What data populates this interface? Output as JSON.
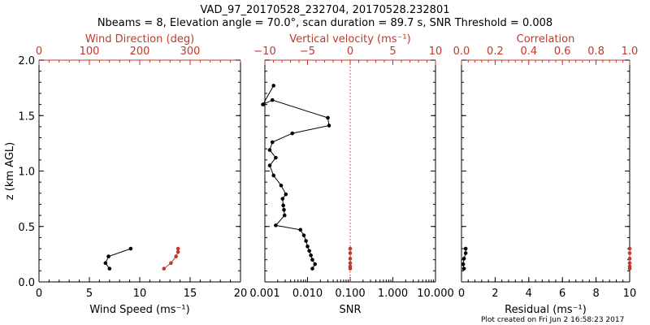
{
  "figure": {
    "title_line1": "VAD_97_20170528_232704, 20170528.232801",
    "title_line2": "Nbeams = 8, Elevation angle = 70.0°, scan duration = 89.7 s, SNR Threshold = 0.008",
    "footer": "Plot created on Fri Jun  2 16:58:23 2017"
  },
  "colors": {
    "primary": "#000000",
    "secondary": "#c0392b"
  },
  "chart_data": [
    {
      "type": "line",
      "ylabel": "z (km AGL)",
      "ylim": [
        0,
        2.0
      ],
      "yticks": [
        "0.0",
        "0.5",
        "1.0",
        "1.5",
        "2.0"
      ],
      "xlabel": "Wind Speed (ms⁻¹)",
      "xlim": [
        0,
        20
      ],
      "xticks": [
        "0",
        "5",
        "10",
        "15",
        "20"
      ],
      "top_xlabel": "Wind Direction (deg)",
      "top_xlim": [
        0,
        400
      ],
      "top_xticks": [
        "0",
        "100",
        "200",
        "300"
      ],
      "series": [
        {
          "axis": "bottom",
          "color": "black",
          "x": [
            7.0,
            6.6,
            6.9,
            9.1
          ],
          "y": [
            0.12,
            0.17,
            0.23,
            0.3
          ]
        },
        {
          "axis": "top",
          "color": "red",
          "x": [
            248,
            262,
            272,
            276,
            276
          ],
          "y": [
            0.12,
            0.17,
            0.23,
            0.27,
            0.3
          ]
        }
      ]
    },
    {
      "type": "line",
      "xlabel": "SNR",
      "xscale": "log",
      "xlim": [
        0.001,
        10
      ],
      "xticks": [
        "0.001",
        "0.010",
        "0.100",
        "1.000",
        "10.000"
      ],
      "top_xlabel": "Vertical velocity (ms⁻¹)",
      "top_xlim": [
        -10,
        10
      ],
      "top_xticks": [
        "−10",
        "−5",
        "0",
        "5",
        "10"
      ],
      "reference_line": {
        "axis": "top",
        "x": 0,
        "style": "dotted",
        "color": "red"
      },
      "series": [
        {
          "axis": "bottom",
          "color": "black",
          "x": [
            0.013,
            0.015,
            0.013,
            0.012,
            0.011,
            0.01,
            0.0092,
            0.0082,
            0.0068,
            0.0018,
            0.0029,
            0.0028,
            0.0027,
            0.0026,
            0.0031,
            0.0024,
            0.0016,
            0.0013,
            0.0018,
            0.0013,
            0.0015,
            0.0044,
            0.032,
            0.03,
            0.0015,
            0.0009,
            0.0016
          ],
          "y": [
            0.12,
            0.16,
            0.2,
            0.24,
            0.28,
            0.32,
            0.37,
            0.42,
            0.47,
            0.51,
            0.6,
            0.65,
            0.69,
            0.75,
            0.79,
            0.87,
            0.96,
            1.05,
            1.12,
            1.19,
            1.26,
            1.34,
            1.41,
            1.48,
            1.64,
            1.6,
            1.77
          ]
        },
        {
          "axis": "top",
          "color": "red",
          "x": [
            0,
            0,
            0,
            0,
            0,
            0
          ],
          "y": [
            0.12,
            0.14,
            0.17,
            0.21,
            0.26,
            0.3
          ]
        }
      ]
    },
    {
      "type": "line",
      "xlabel": "Residual (ms⁻¹)",
      "xlim": [
        0,
        10
      ],
      "xticks": [
        "0",
        "2",
        "4",
        "6",
        "8",
        "10"
      ],
      "top_xlabel": "Correlation",
      "top_xlim": [
        0,
        1.0
      ],
      "top_xticks": [
        "0.0",
        "0.2",
        "0.4",
        "0.6",
        "0.8",
        "1.0"
      ],
      "series": [
        {
          "axis": "bottom",
          "color": "black",
          "x": [
            0.15,
            0.1,
            0.15,
            0.25,
            0.25
          ],
          "y": [
            0.12,
            0.16,
            0.21,
            0.26,
            0.3
          ]
        },
        {
          "axis": "top",
          "color": "red",
          "x": [
            1.0,
            1.0,
            1.0,
            1.0,
            1.0,
            1.0
          ],
          "y": [
            0.12,
            0.14,
            0.17,
            0.21,
            0.26,
            0.3
          ]
        }
      ]
    }
  ]
}
